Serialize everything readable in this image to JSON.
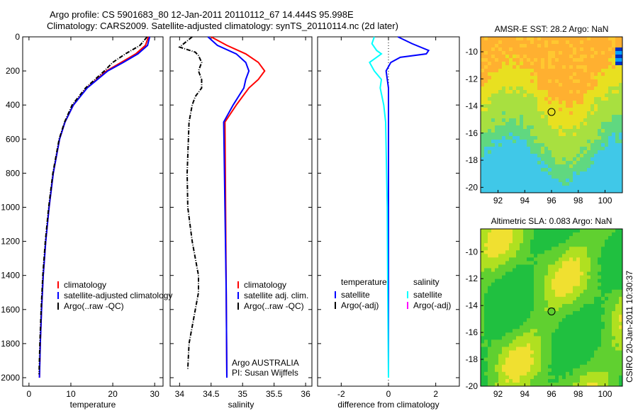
{
  "title_line1": "Argo profile: CS 5901683_80 12-Jan-2011 20110112_67 14.444S 95.998E",
  "title_line2": "Climatology: CARS2009. Satellite-adjusted climatology: synTS_20110114.nc (2d later)",
  "side_label": "CSIRO 20-Jan-2011 10:30:37",
  "credit": [
    "Argo AUSTRALIA",
    "PI: Susan Wijffels"
  ],
  "map1_title": "AMSR-E SST: 28.2 Argo: NaN",
  "map2_title": "Altimetric SLA: 0.083 Argo: NaN",
  "colors": {
    "clim": "#ff0000",
    "sat": "#0000ff",
    "argo": "#000000",
    "sal_sat": "#00ffff",
    "sal_argo": "#ff00ff"
  },
  "chart_data": [
    {
      "type": "line",
      "xlabel": "temperature",
      "ylabel": "",
      "xlim": [
        -1.5,
        32
      ],
      "ylim": [
        2050,
        0
      ],
      "xticks": [
        0,
        10,
        20,
        30
      ],
      "yticks": [
        0,
        200,
        400,
        600,
        800,
        1000,
        1200,
        1400,
        1600,
        1800,
        2000
      ],
      "legend": [
        "climatology",
        "satellite-adjusted climatology",
        "Argo(..raw -QC)"
      ],
      "series": [
        {
          "name": "climatology",
          "color": "#ff0000",
          "depth": [
            0,
            50,
            100,
            150,
            200,
            300,
            400,
            500,
            600,
            800,
            1000,
            1200,
            1400,
            1600,
            1800,
            2000
          ],
          "values": [
            28.5,
            27.8,
            25.5,
            22,
            18.5,
            13.8,
            10.6,
            8.6,
            7.3,
            5.8,
            4.8,
            4.0,
            3.4,
            3.0,
            2.7,
            2.5
          ]
        },
        {
          "name": "satellite-adjusted climatology",
          "color": "#0000ff",
          "depth": [
            0,
            50,
            100,
            150,
            200,
            300,
            400,
            500,
            600,
            800,
            1000,
            1200,
            1400,
            1600,
            1800,
            2000
          ],
          "values": [
            28.8,
            28.3,
            26,
            22.5,
            18.8,
            13.9,
            10.6,
            8.6,
            7.3,
            5.8,
            4.8,
            4.0,
            3.4,
            3.0,
            2.7,
            2.5
          ]
        },
        {
          "name": "Argo(..raw -QC)",
          "color": "#000000",
          "dash": true,
          "depth": [
            0,
            50,
            100,
            150,
            200,
            300,
            400,
            500,
            600,
            800,
            1000,
            1200,
            1400,
            1600,
            1800,
            1980
          ],
          "values": [
            28.2,
            26.5,
            23,
            20,
            18,
            13.5,
            10.3,
            8.5,
            7.2,
            5.7,
            4.7,
            3.9,
            3.3,
            2.9,
            2.6,
            2.4
          ]
        }
      ]
    },
    {
      "type": "line",
      "xlabel": "salinity",
      "xlim": [
        33.85,
        36.1
      ],
      "ylim": [
        2050,
        0
      ],
      "xticks": [
        34,
        34.5,
        35,
        35.5,
        36
      ],
      "legend": [
        "climatology",
        "satellite adj. clim.",
        "Argo(..raw -QC)"
      ],
      "series": [
        {
          "name": "climatology",
          "color": "#ff0000",
          "depth": [
            0,
            50,
            100,
            150,
            200,
            250,
            300,
            400,
            500,
            1000,
            1500,
            2000
          ],
          "values": [
            34.5,
            34.75,
            35.05,
            35.25,
            35.35,
            35.25,
            35.1,
            34.9,
            34.72,
            34.73,
            34.74,
            34.75
          ]
        },
        {
          "name": "satellite adj. clim.",
          "color": "#0000ff",
          "depth": [
            0,
            50,
            100,
            150,
            200,
            250,
            300,
            400,
            500,
            1000,
            1500,
            2000
          ],
          "values": [
            34.45,
            34.6,
            34.9,
            35.05,
            35.1,
            35.05,
            35.02,
            34.85,
            34.7,
            34.72,
            34.74,
            34.75
          ]
        },
        {
          "name": "Argo(..raw -QC)",
          "color": "#000000",
          "dash": true,
          "depth": [
            0,
            60,
            90,
            110,
            150,
            200,
            250,
            300,
            350,
            400,
            500,
            600,
            800,
            1000,
            1200,
            1400,
            1500,
            1600,
            1800,
            1950
          ],
          "values": [
            34.2,
            34.0,
            34.25,
            34.3,
            34.35,
            34.3,
            34.35,
            34.35,
            34.25,
            34.2,
            34.15,
            34.14,
            34.12,
            34.13,
            34.2,
            34.3,
            34.3,
            34.25,
            34.15,
            34.13
          ]
        }
      ]
    },
    {
      "type": "line",
      "xlabel": "difference from climatology",
      "xlim": [
        -3,
        3
      ],
      "ylim": [
        2050,
        0
      ],
      "xticks": [
        -2,
        0,
        2
      ],
      "legend_headers": [
        "temperature",
        "salinity"
      ],
      "legend": [
        "satellite",
        "Argo(-adj)",
        "satellite",
        "Argo(-adj)"
      ],
      "series": [
        {
          "name": "temperature satellite",
          "color": "#0000ff",
          "depth": [
            0,
            40,
            80,
            100,
            120,
            150,
            200,
            300,
            500,
            1000,
            1500,
            2000
          ],
          "values": [
            0.4,
            1.0,
            1.7,
            1.6,
            0.5,
            0.1,
            -0.1,
            0.0,
            0.0,
            0.0,
            0.0,
            0.0
          ]
        },
        {
          "name": "salinity satellite",
          "color": "#00ffff",
          "depth": [
            0,
            40,
            80,
            100,
            150,
            200,
            250,
            300,
            400,
            500,
            800,
            1000,
            1500,
            2000
          ],
          "values": [
            -0.6,
            -0.7,
            -0.5,
            -0.3,
            -0.8,
            -0.6,
            -0.3,
            -0.35,
            -0.2,
            -0.12,
            -0.08,
            -0.05,
            -0.03,
            0.0
          ]
        }
      ]
    },
    {
      "type": "heatmap",
      "title": "AMSR-E SST: 28.2 Argo: NaN",
      "xticks": [
        92,
        94,
        96,
        98,
        100
      ],
      "yticks": [
        -10,
        -12,
        -14,
        -16,
        -18,
        -20
      ],
      "xlim": [
        90.7,
        101.3
      ],
      "ylim": [
        -20.4,
        -8.9
      ],
      "marker": [
        96.0,
        -14.44
      ]
    },
    {
      "type": "heatmap",
      "title": "Altimetric SLA: 0.083 Argo: NaN",
      "xticks": [
        92,
        94,
        96,
        98,
        100
      ],
      "yticks": [
        -10,
        -12,
        -14,
        -16,
        -18,
        -20
      ],
      "xlim": [
        90.7,
        101.3
      ],
      "ylim": [
        -20.0,
        -8.3
      ],
      "marker": [
        96.0,
        -14.44
      ]
    }
  ]
}
